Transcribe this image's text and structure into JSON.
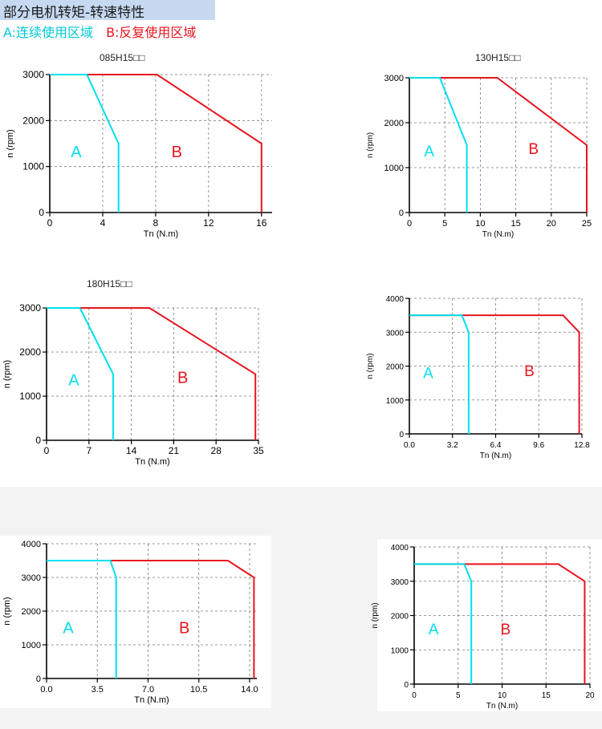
{
  "header": {
    "title": "部分电机转矩-转速特性",
    "legend_a": "A:连续使用区域",
    "legend_b": "B:反复使用区域"
  },
  "colors": {
    "A": "#00e0ee",
    "B": "#e8141e",
    "axis": "#000000",
    "grid": "#7a7a7a"
  },
  "chart_data": [
    {
      "type": "line",
      "title": "085H15□□",
      "xlabel": "Tn (N.m)",
      "ylabel": "n (rpm)",
      "xlim": [
        0,
        16.8
      ],
      "ylim": [
        0,
        3000
      ],
      "xticks": [
        0,
        4,
        8,
        12,
        16
      ],
      "xtick_labels": [
        "0",
        "4",
        "8",
        "12",
        "16"
      ],
      "yticks": [
        0,
        1000,
        2000,
        3000
      ],
      "ytick_labels": [
        "0",
        "1000",
        "2000",
        "3000"
      ],
      "grid": true,
      "series": [
        {
          "name": "A",
          "label_pos": [
            2,
            1200
          ],
          "points": [
            [
              0,
              3000
            ],
            [
              2.8,
              3000
            ],
            [
              5.2,
              1500
            ],
            [
              5.2,
              0
            ]
          ]
        },
        {
          "name": "B",
          "label_pos": [
            9.6,
            1200
          ],
          "points": [
            [
              0,
              3000
            ],
            [
              8.1,
              3000
            ],
            [
              16,
              1500
            ],
            [
              16,
              0
            ]
          ]
        }
      ]
    },
    {
      "type": "line",
      "title": "130H15□□",
      "xlabel": "Tn (N.m)",
      "ylabel": "n (rpm)",
      "xlim": [
        0,
        25
      ],
      "ylim": [
        0,
        3000
      ],
      "xticks": [
        0,
        5,
        10,
        15,
        20,
        25
      ],
      "xtick_labels": [
        "0",
        "5",
        "10",
        "15",
        "20",
        "25"
      ],
      "yticks": [
        0,
        1000,
        2000,
        3000
      ],
      "ytick_labels": [
        "0",
        "1000",
        "2000",
        "3000"
      ],
      "grid": true,
      "series": [
        {
          "name": "A",
          "label_pos": [
            2.8,
            1250
          ],
          "points": [
            [
              0,
              3000
            ],
            [
              4.3,
              3000
            ],
            [
              8.1,
              1500
            ],
            [
              8.1,
              0
            ]
          ]
        },
        {
          "name": "B",
          "label_pos": [
            17.5,
            1300
          ],
          "points": [
            [
              0,
              3000
            ],
            [
              12.4,
              3000
            ],
            [
              25,
              1500
            ],
            [
              25,
              0
            ]
          ]
        }
      ]
    },
    {
      "type": "line",
      "title": "180H15□□",
      "xlabel": "Tn (N.m)",
      "ylabel": "n (rpm)",
      "xlim": [
        0,
        35
      ],
      "ylim": [
        0,
        3000
      ],
      "xticks": [
        0,
        7,
        14,
        21,
        28,
        35
      ],
      "xtick_labels": [
        "0",
        "7",
        "14",
        "21",
        "28",
        "35"
      ],
      "yticks": [
        0,
        1000,
        2000,
        3000
      ],
      "ytick_labels": [
        "0",
        "1000",
        "2000",
        "3000"
      ],
      "grid": true,
      "series": [
        {
          "name": "A",
          "label_pos": [
            4.5,
            1250
          ],
          "points": [
            [
              0,
              3000
            ],
            [
              5.5,
              3000
            ],
            [
              11,
              1500
            ],
            [
              11,
              0
            ]
          ]
        },
        {
          "name": "B",
          "label_pos": [
            22.5,
            1300
          ],
          "points": [
            [
              0,
              3000
            ],
            [
              17,
              3000
            ],
            [
              34.5,
              1500
            ],
            [
              34.5,
              0
            ]
          ]
        }
      ]
    },
    {
      "type": "line",
      "title": "",
      "xlabel": "Tn (N.m)",
      "ylabel": "n (rpm)",
      "xlim": [
        0,
        12.8
      ],
      "ylim": [
        0,
        4000
      ],
      "xticks": [
        0,
        3.2,
        6.4,
        9.6,
        12.8
      ],
      "xtick_labels": [
        "0.0",
        "3.2",
        "6.4",
        "9.6",
        "12.8"
      ],
      "yticks": [
        0,
        1000,
        2000,
        3000,
        4000
      ],
      "ytick_labels": [
        "0",
        "1000",
        "2000",
        "3000",
        "4000"
      ],
      "grid": true,
      "series": [
        {
          "name": "A",
          "label_pos": [
            1.4,
            1650
          ],
          "points": [
            [
              0,
              3500
            ],
            [
              3.9,
              3500
            ],
            [
              4.4,
              3000
            ],
            [
              4.4,
              0
            ]
          ]
        },
        {
          "name": "B",
          "label_pos": [
            8.9,
            1700
          ],
          "points": [
            [
              0,
              3500
            ],
            [
              11.4,
              3500
            ],
            [
              12.6,
              3000
            ],
            [
              12.6,
              0
            ]
          ]
        }
      ]
    },
    {
      "type": "line",
      "title": "",
      "xlabel": "Tn (N.m)",
      "ylabel": "n (rpm)",
      "xlim": [
        0,
        14.5
      ],
      "ylim": [
        0,
        4000
      ],
      "xticks": [
        0,
        3.5,
        7.0,
        10.5,
        14.0
      ],
      "xtick_labels": [
        "0.0",
        "3.5",
        "7.0",
        "10.5",
        "14.0"
      ],
      "yticks": [
        0,
        1000,
        2000,
        3000,
        4000
      ],
      "ytick_labels": [
        "0",
        "1000",
        "2000",
        "3000",
        "4000"
      ],
      "grid": true,
      "series": [
        {
          "name": "A",
          "label_pos": [
            1.5,
            1350
          ],
          "points": [
            [
              0,
              3500
            ],
            [
              4.4,
              3500
            ],
            [
              4.8,
              3000
            ],
            [
              4.8,
              0
            ]
          ]
        },
        {
          "name": "B",
          "label_pos": [
            9.5,
            1350
          ],
          "points": [
            [
              0,
              3500
            ],
            [
              12.5,
              3500
            ],
            [
              14.3,
              3000
            ],
            [
              14.3,
              0
            ]
          ]
        }
      ]
    },
    {
      "type": "line",
      "title": "",
      "xlabel": "Tn (N.m)",
      "ylabel": "n (rpm)",
      "xlim": [
        0,
        20
      ],
      "ylim": [
        0,
        4000
      ],
      "xticks": [
        0,
        5,
        10,
        15,
        20
      ],
      "xtick_labels": [
        "0",
        "5",
        "10",
        "15",
        "20"
      ],
      "yticks": [
        0,
        1000,
        2000,
        3000,
        4000
      ],
      "ytick_labels": [
        "0",
        "1000",
        "2000",
        "3000",
        "4000"
      ],
      "grid": true,
      "series": [
        {
          "name": "A",
          "label_pos": [
            2.2,
            1450
          ],
          "points": [
            [
              0,
              3500
            ],
            [
              5.7,
              3500
            ],
            [
              6.5,
              3000
            ],
            [
              6.5,
              0
            ]
          ]
        },
        {
          "name": "B",
          "label_pos": [
            10.4,
            1450
          ],
          "points": [
            [
              0,
              3500
            ],
            [
              16.4,
              3500
            ],
            [
              19.4,
              3000
            ],
            [
              19.4,
              0
            ]
          ]
        }
      ]
    }
  ]
}
